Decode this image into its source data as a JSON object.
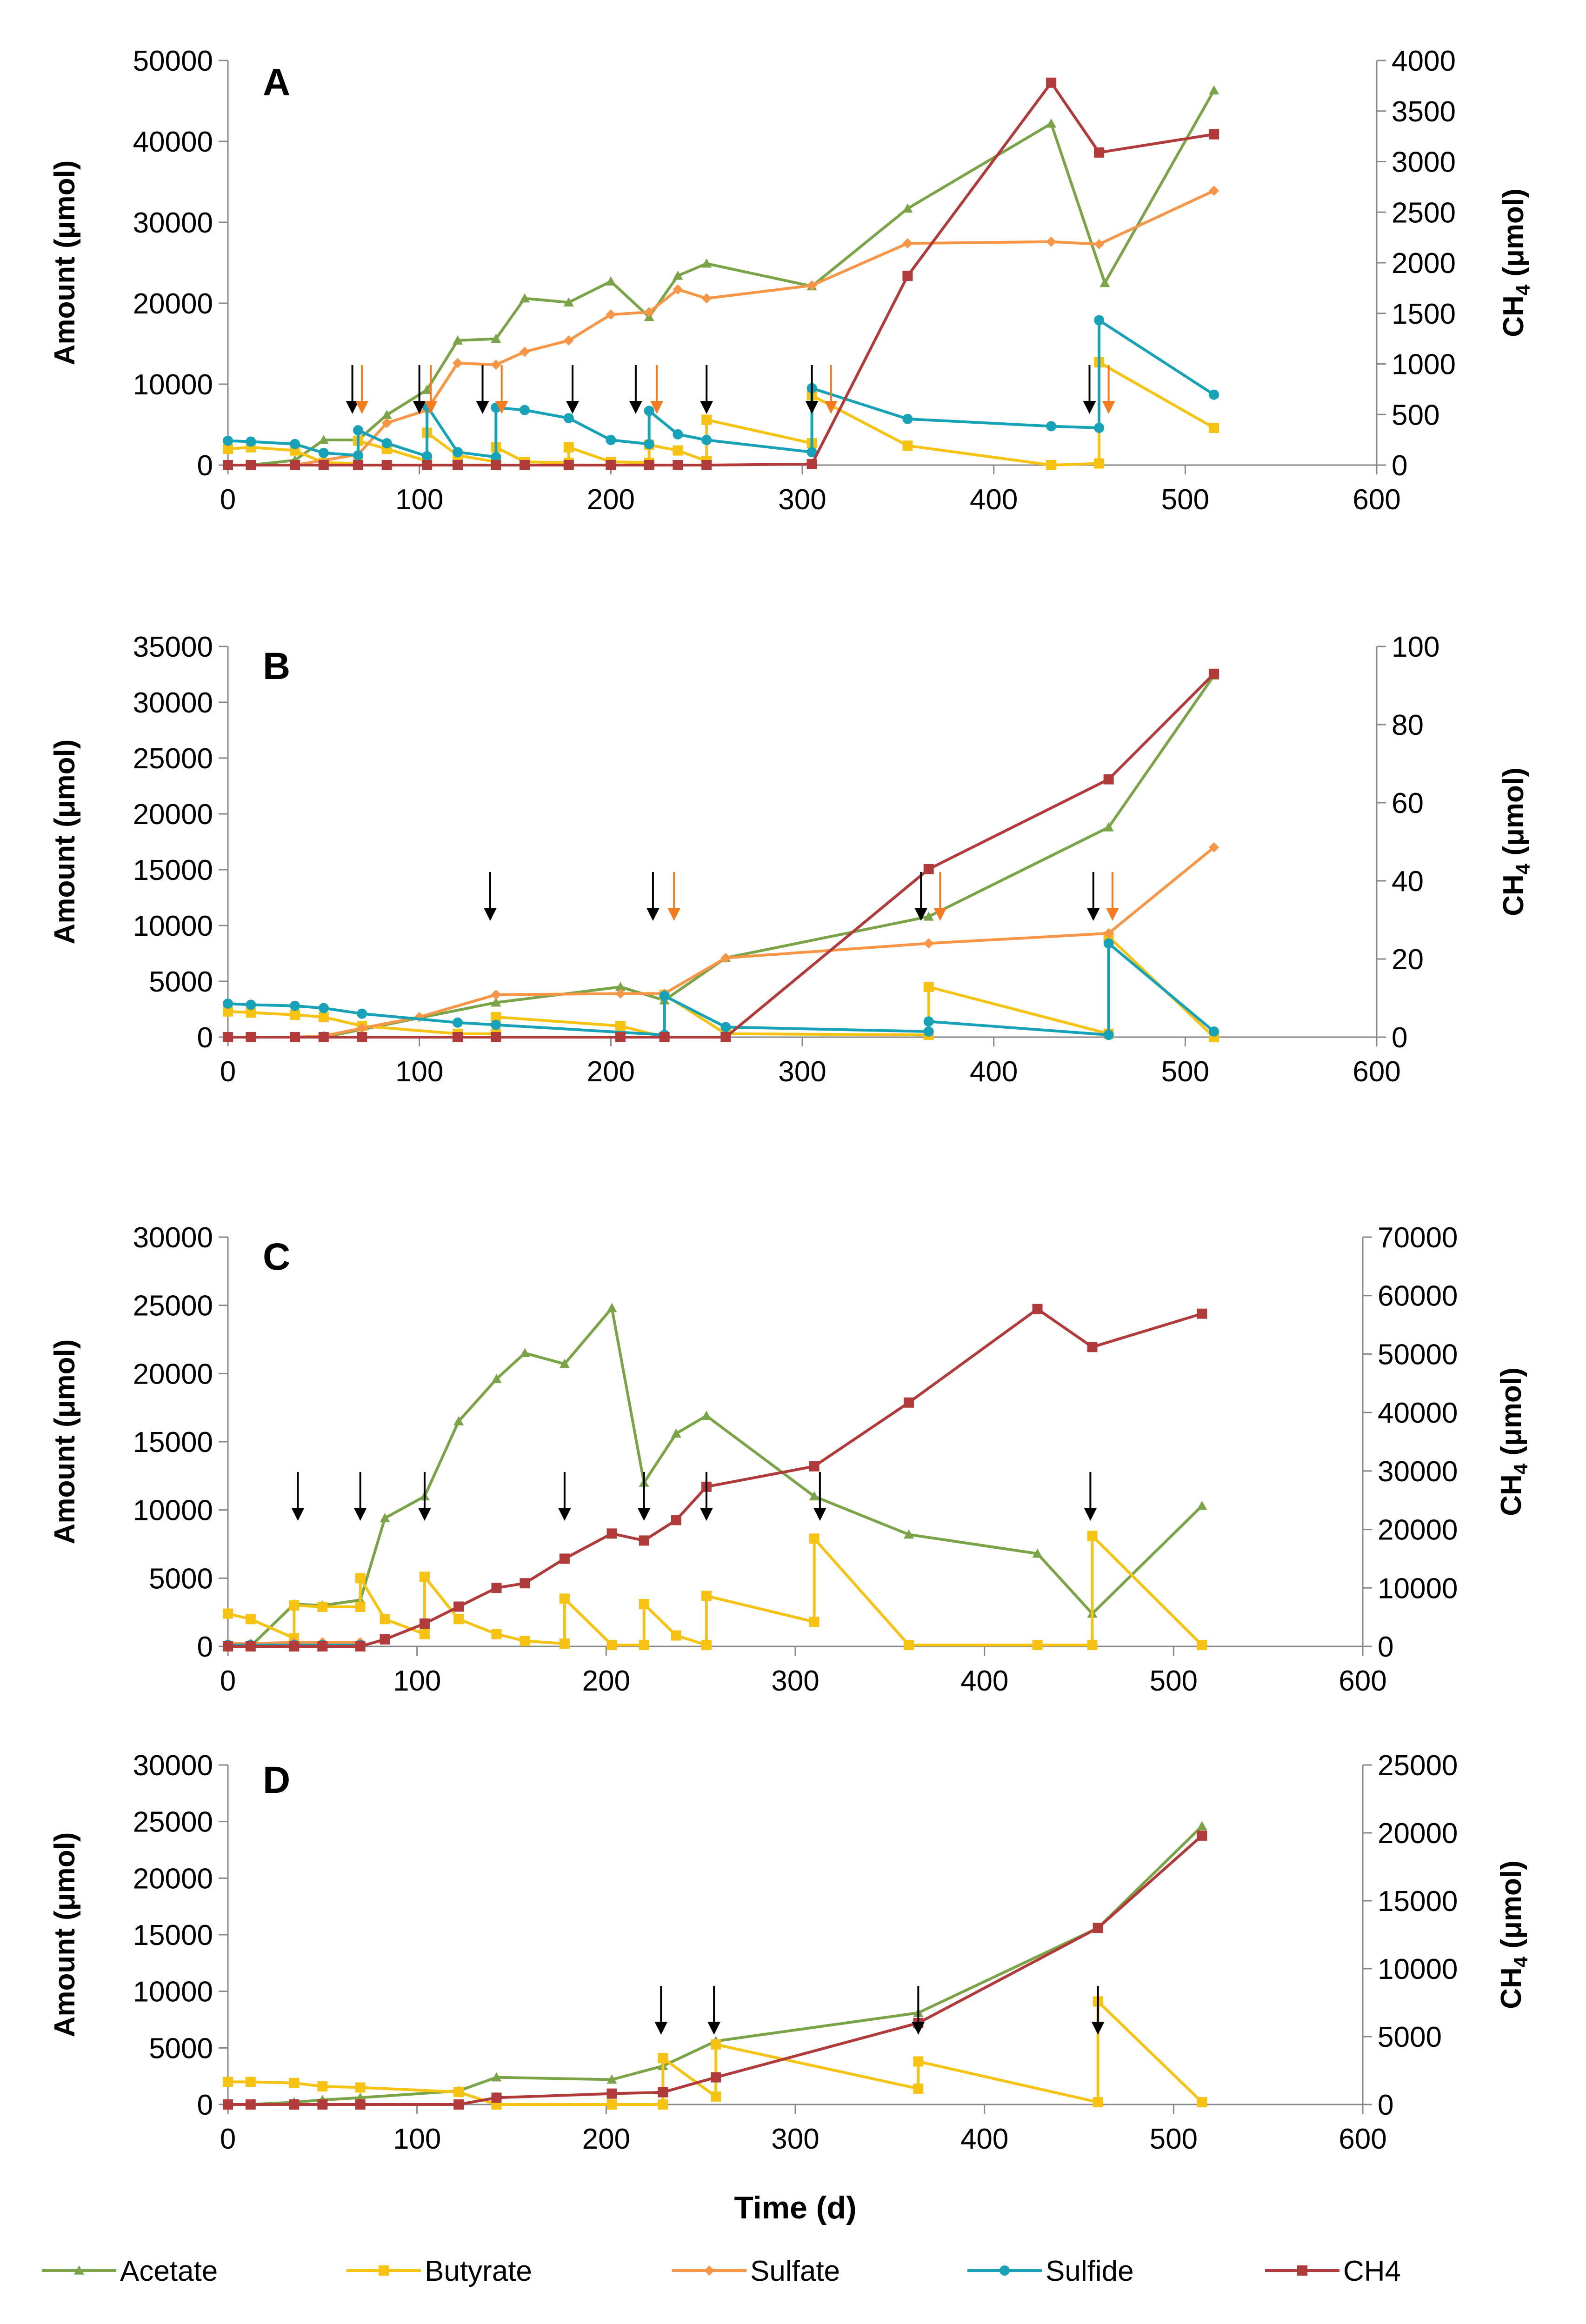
{
  "figure": {
    "xlabel": "Time (d)",
    "ylabel_left": "Amount (μmol)",
    "ylabel_right_main": "CH",
    "ylabel_right_sub": "4",
    "ylabel_right_unit": " (μmol)"
  },
  "legend": [
    {
      "name": "Acetate",
      "color": "#7ba448",
      "marker": "triangle"
    },
    {
      "name": "Butyrate",
      "color": "#f7c313",
      "marker": "square"
    },
    {
      "name": "Sulfate",
      "color": "#f79646",
      "marker": "diamond"
    },
    {
      "name": "Sulfide",
      "color": "#17a2b8",
      "marker": "circle"
    },
    {
      "name": "CH4",
      "color": "#b13a3a",
      "marker": "square"
    }
  ],
  "chart_data": [
    {
      "panel": "A",
      "type": "line",
      "xlim": [
        0,
        600
      ],
      "xticks": [
        0,
        100,
        200,
        300,
        400,
        500,
        600
      ],
      "ylim_left": [
        0,
        50000
      ],
      "yticks_left": [
        0,
        10000,
        20000,
        30000,
        40000,
        50000
      ],
      "ylim_right": [
        0,
        4000
      ],
      "yticks_right": [
        0,
        500,
        1000,
        1500,
        2000,
        2500,
        3000,
        3500,
        4000
      ],
      "series": [
        {
          "name": "Acetate",
          "axis": "left",
          "x": [
            0,
            12,
            35,
            50,
            68,
            83,
            104,
            120,
            140,
            155,
            178,
            200,
            220,
            235,
            250,
            305,
            355,
            430,
            458,
            515
          ],
          "y": [
            0,
            0,
            600,
            3100,
            3100,
            6200,
            9300,
            15400,
            15600,
            20600,
            20100,
            22700,
            18300,
            23400,
            24900,
            22100,
            31700,
            42200,
            22500,
            46300
          ]
        },
        {
          "name": "Butyrate",
          "axis": "left",
          "x": [
            0,
            12,
            35,
            50,
            68,
            68,
            83,
            104,
            104,
            120,
            140,
            140,
            155,
            178,
            178,
            200,
            220,
            220,
            235,
            250,
            250,
            305,
            305,
            355,
            430,
            455,
            455,
            515
          ],
          "y": [
            2000,
            2200,
            1800,
            300,
            200,
            3000,
            2000,
            500,
            4000,
            1200,
            400,
            2200,
            400,
            300,
            2200,
            400,
            300,
            2500,
            1800,
            500,
            5600,
            2700,
            8600,
            2400,
            0,
            200,
            12700,
            4600
          ]
        },
        {
          "name": "Sulfate",
          "axis": "left",
          "x": [
            0,
            12,
            35,
            68,
            83,
            104,
            120,
            140,
            155,
            178,
            200,
            220,
            235,
            250,
            305,
            355,
            430,
            455,
            515
          ],
          "y": [
            0,
            0,
            0,
            1300,
            5200,
            6800,
            12600,
            12400,
            14000,
            15400,
            18600,
            18900,
            21700,
            20600,
            22200,
            27400,
            27600,
            27300,
            33900
          ]
        },
        {
          "name": "Sulfide",
          "axis": "left",
          "x": [
            0,
            12,
            35,
            50,
            68,
            68,
            83,
            104,
            104,
            120,
            140,
            140,
            155,
            178,
            200,
            220,
            220,
            235,
            250,
            305,
            305,
            355,
            430,
            455,
            455,
            515
          ],
          "y": [
            3000,
            2900,
            2600,
            1500,
            1200,
            4300,
            2700,
            1100,
            7300,
            1600,
            1000,
            7100,
            6800,
            5800,
            3100,
            2600,
            6700,
            3800,
            3100,
            1600,
            9500,
            5700,
            4800,
            4600,
            17900,
            8700
          ]
        },
        {
          "name": "CH4",
          "axis": "right",
          "x": [
            0,
            12,
            35,
            50,
            68,
            83,
            104,
            120,
            140,
            155,
            178,
            200,
            220,
            235,
            250,
            305,
            355,
            430,
            455,
            515
          ],
          "y": [
            0,
            0,
            0,
            0,
            0,
            0,
            0,
            0,
            0,
            0,
            0,
            0,
            0,
            0,
            0,
            10,
            1870,
            3780,
            3090,
            3270
          ]
        }
      ],
      "black_arrows_x": [
        65,
        100,
        133,
        180,
        213,
        250,
        305,
        450
      ],
      "orange_arrows_x": [
        70,
        106,
        143,
        224,
        315,
        460
      ]
    },
    {
      "panel": "B",
      "type": "line",
      "xlim": [
        0,
        600
      ],
      "xticks": [
        0,
        100,
        200,
        300,
        400,
        500,
        600
      ],
      "ylim_left": [
        0,
        35000
      ],
      "yticks_left": [
        0,
        5000,
        10000,
        15000,
        20000,
        25000,
        30000,
        35000
      ],
      "ylim_right": [
        0,
        100
      ],
      "yticks_right": [
        0,
        20,
        40,
        60,
        80,
        100
      ],
      "series": [
        {
          "name": "Acetate",
          "axis": "left",
          "x": [
            0,
            12,
            35,
            50,
            140,
            205,
            228,
            260,
            366,
            460,
            515
          ],
          "y": [
            0,
            0,
            0,
            0,
            3100,
            4500,
            3300,
            7100,
            10800,
            18800,
            32400
          ]
        },
        {
          "name": "Butyrate",
          "axis": "left",
          "x": [
            0,
            12,
            35,
            50,
            70,
            120,
            140,
            140,
            205,
            228,
            228,
            260,
            366,
            366,
            460,
            460,
            515
          ],
          "y": [
            2300,
            2200,
            2000,
            1800,
            1000,
            300,
            300,
            1800,
            1000,
            0,
            3800,
            300,
            200,
            4500,
            300,
            9000,
            0
          ]
        },
        {
          "name": "Sulfate",
          "axis": "left",
          "x": [
            0,
            12,
            35,
            50,
            70,
            100,
            140,
            205,
            228,
            260,
            366,
            460,
            515
          ],
          "y": [
            0,
            0,
            0,
            100,
            800,
            1800,
            3800,
            3900,
            3900,
            7100,
            8400,
            9300,
            17000
          ]
        },
        {
          "name": "Sulfide",
          "axis": "left",
          "x": [
            0,
            12,
            35,
            50,
            70,
            120,
            140,
            228,
            228,
            260,
            366,
            366,
            460,
            460,
            515
          ],
          "y": [
            3000,
            2900,
            2800,
            2600,
            2100,
            1300,
            1100,
            200,
            3700,
            900,
            500,
            1400,
            200,
            8400,
            500
          ]
        },
        {
          "name": "CH4",
          "axis": "right",
          "x": [
            0,
            12,
            35,
            50,
            70,
            120,
            140,
            205,
            228,
            260,
            366,
            460,
            515
          ],
          "y": [
            0,
            0,
            0,
            0,
            0,
            0,
            0,
            0,
            0,
            0,
            43,
            66,
            93
          ]
        }
      ],
      "black_arrows_x": [
        137,
        222,
        362,
        452
      ],
      "orange_arrows_x": [
        233,
        372,
        462
      ]
    },
    {
      "panel": "C",
      "type": "line",
      "xlim": [
        0,
        600
      ],
      "xticks": [
        0,
        100,
        200,
        300,
        400,
        500,
        600
      ],
      "ylim_left": [
        0,
        30000
      ],
      "yticks_left": [
        0,
        5000,
        10000,
        15000,
        20000,
        25000,
        30000
      ],
      "ylim_right": [
        0,
        70000
      ],
      "yticks_right": [
        0,
        10000,
        20000,
        30000,
        40000,
        50000,
        60000,
        70000
      ],
      "series": [
        {
          "name": "Acetate",
          "axis": "left",
          "x": [
            0,
            12,
            35,
            50,
            70,
            83,
            104,
            122,
            142,
            157,
            178,
            203,
            220,
            237,
            253,
            310,
            360,
            428,
            457,
            515
          ],
          "y": [
            0,
            0,
            3100,
            3000,
            3400,
            9400,
            11000,
            16500,
            19600,
            21500,
            20700,
            24800,
            12000,
            15600,
            16900,
            11000,
            8200,
            6800,
            2400,
            10300
          ]
        },
        {
          "name": "Butyrate",
          "axis": "left",
          "x": [
            0,
            12,
            35,
            35,
            50,
            70,
            70,
            83,
            104,
            104,
            122,
            142,
            157,
            178,
            178,
            203,
            220,
            220,
            237,
            253,
            253,
            310,
            310,
            360,
            428,
            457,
            457,
            515
          ],
          "y": [
            2400,
            2000,
            600,
            3000,
            2900,
            2900,
            5000,
            2000,
            900,
            5100,
            2000,
            900,
            400,
            200,
            3500,
            100,
            100,
            3100,
            800,
            100,
            3700,
            1800,
            7900,
            100,
            100,
            100,
            8100,
            100
          ]
        },
        {
          "name": "Sulfate",
          "axis": "left",
          "x": [
            0,
            12,
            35,
            50,
            70
          ],
          "y": [
            200,
            200,
            300,
            300,
            300
          ]
        },
        {
          "name": "Sulfide",
          "axis": "left",
          "x": [
            0,
            12,
            35,
            50,
            70
          ],
          "y": [
            100,
            100,
            100,
            100,
            100
          ]
        },
        {
          "name": "CH4",
          "axis": "right",
          "x": [
            0,
            12,
            35,
            50,
            70,
            83,
            104,
            122,
            142,
            157,
            178,
            203,
            220,
            237,
            253,
            310,
            360,
            428,
            457,
            515
          ],
          "y": [
            0,
            0,
            0,
            0,
            0,
            1200,
            3900,
            6800,
            10000,
            10800,
            15000,
            19300,
            18100,
            21600,
            27300,
            30800,
            41700,
            57700,
            51200,
            56900
          ]
        }
      ],
      "black_arrows_x": [
        37,
        70,
        104,
        178,
        220,
        253,
        313,
        456
      ]
    },
    {
      "panel": "D",
      "type": "line",
      "xlim": [
        0,
        600
      ],
      "xticks": [
        0,
        100,
        200,
        300,
        400,
        500,
        600
      ],
      "ylim_left": [
        0,
        30000
      ],
      "yticks_left": [
        0,
        5000,
        10000,
        15000,
        20000,
        25000,
        30000
      ],
      "ylim_right": [
        0,
        25000
      ],
      "yticks_right": [
        0,
        5000,
        10000,
        15000,
        20000,
        25000
      ],
      "series": [
        {
          "name": "Acetate",
          "axis": "left",
          "x": [
            0,
            12,
            35,
            50,
            70,
            122,
            142,
            203,
            230,
            258,
            365,
            460,
            515
          ],
          "y": [
            0,
            0,
            200,
            400,
            600,
            1200,
            2400,
            2200,
            3400,
            5600,
            8100,
            15600,
            24600
          ]
        },
        {
          "name": "Butyrate",
          "axis": "left",
          "x": [
            0,
            12,
            35,
            50,
            70,
            122,
            142,
            203,
            230,
            230,
            258,
            258,
            365,
            365,
            460,
            460,
            515
          ],
          "y": [
            2000,
            2000,
            1900,
            1600,
            1500,
            1100,
            0,
            0,
            0,
            4100,
            700,
            5300,
            1400,
            3800,
            200,
            9100,
            200
          ]
        },
        {
          "name": "CH4",
          "axis": "right",
          "x": [
            0,
            12,
            35,
            50,
            70,
            122,
            142,
            203,
            230,
            258,
            365,
            460,
            515
          ],
          "y": [
            0,
            0,
            0,
            0,
            0,
            0,
            500,
            800,
            900,
            2000,
            6000,
            13000,
            19800
          ]
        }
      ],
      "black_arrows_x": [
        229,
        257,
        365,
        460
      ]
    }
  ]
}
